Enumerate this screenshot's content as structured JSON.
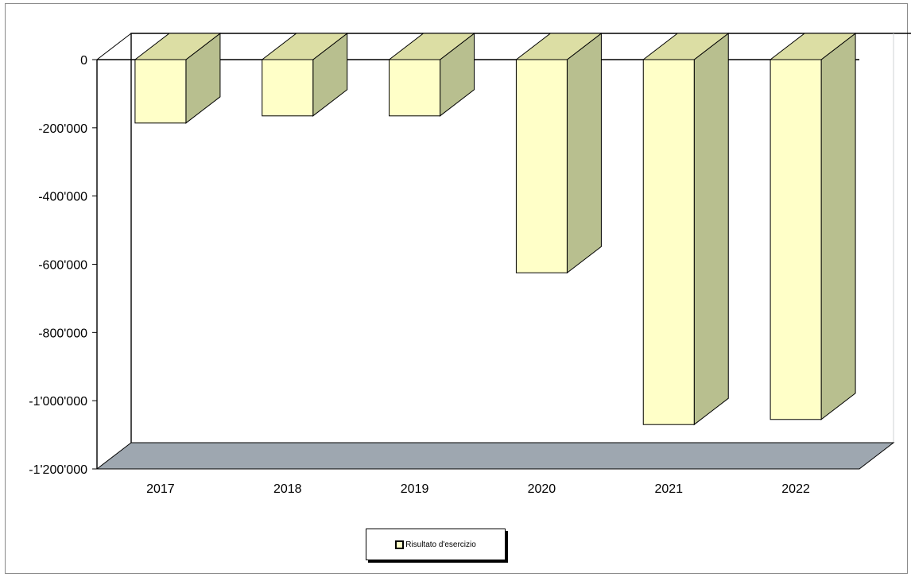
{
  "chart_data": {
    "type": "bar",
    "title": "",
    "xlabel": "",
    "ylabel": "",
    "categories": [
      "2017",
      "2018",
      "2019",
      "2020",
      "2021",
      "2022"
    ],
    "series": [
      {
        "name": "Risultato d'esercizio",
        "values": [
          -186000,
          -165000,
          -165000,
          -625000,
          -1070000,
          -1055000
        ]
      }
    ],
    "ylim": [
      -1200000,
      0
    ],
    "y_ticks": [
      "0",
      "-200'000",
      "-400'000",
      "-600'000",
      "-800'000",
      "-1'000'000",
      "-1'200'000"
    ],
    "y_tick_values": [
      0,
      -200000,
      -400000,
      -600000,
      -800000,
      -1000000,
      -1200000
    ],
    "grid": false,
    "legend_position": "bottom",
    "colors": {
      "bar_front": "#ffffc8",
      "bar_side": "#b8bf8f",
      "bar_top": "#dcdea4",
      "floor": "#9ea7b0",
      "axis": "#000000"
    }
  }
}
